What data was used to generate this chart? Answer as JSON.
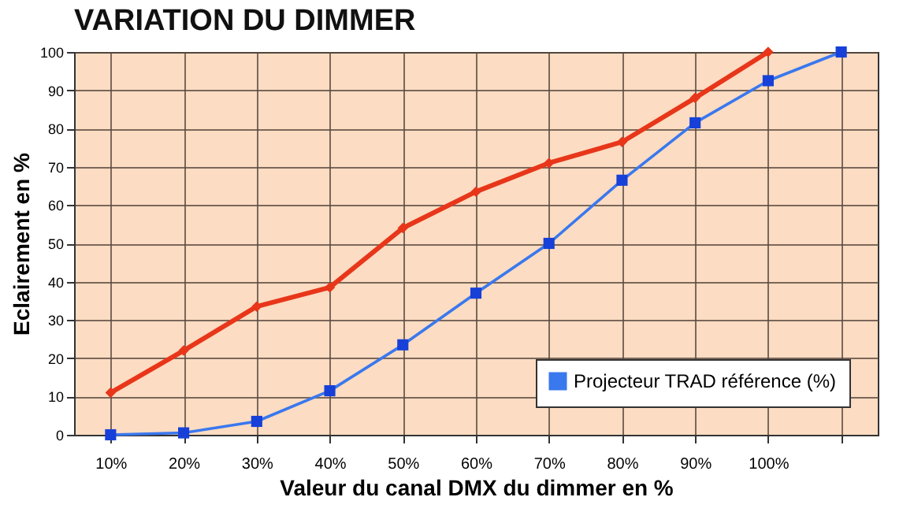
{
  "chart_data": {
    "type": "line",
    "title": "VARIATION DU DIMMER",
    "xlabel": "Valeur du canal DMX du dimmer en %",
    "ylabel": "Eclairement en %",
    "categories": [
      "10%",
      "20%",
      "30%",
      "40%",
      "50%",
      "60%",
      "70%",
      "80%",
      "90%",
      "100%",
      null
    ],
    "series": [
      {
        "color": "#e8361a",
        "marker": "diamond",
        "values": [
          11,
          22,
          33.5,
          38.5,
          54,
          63.5,
          71,
          76.5,
          88,
          100,
          null
        ]
      },
      {
        "name": "Projecteur TRAD référence (%)",
        "color": "#3a78ee",
        "marker": "square",
        "values": [
          0,
          0.5,
          3.5,
          11.5,
          23.5,
          37,
          50,
          66.5,
          81.5,
          92.5,
          100
        ]
      }
    ],
    "ylim": [
      0,
      100
    ],
    "yticks": [
      0,
      10,
      20,
      30,
      40,
      50,
      60,
      70,
      80,
      90,
      100
    ],
    "grid": true,
    "legend": "bottom right"
  }
}
